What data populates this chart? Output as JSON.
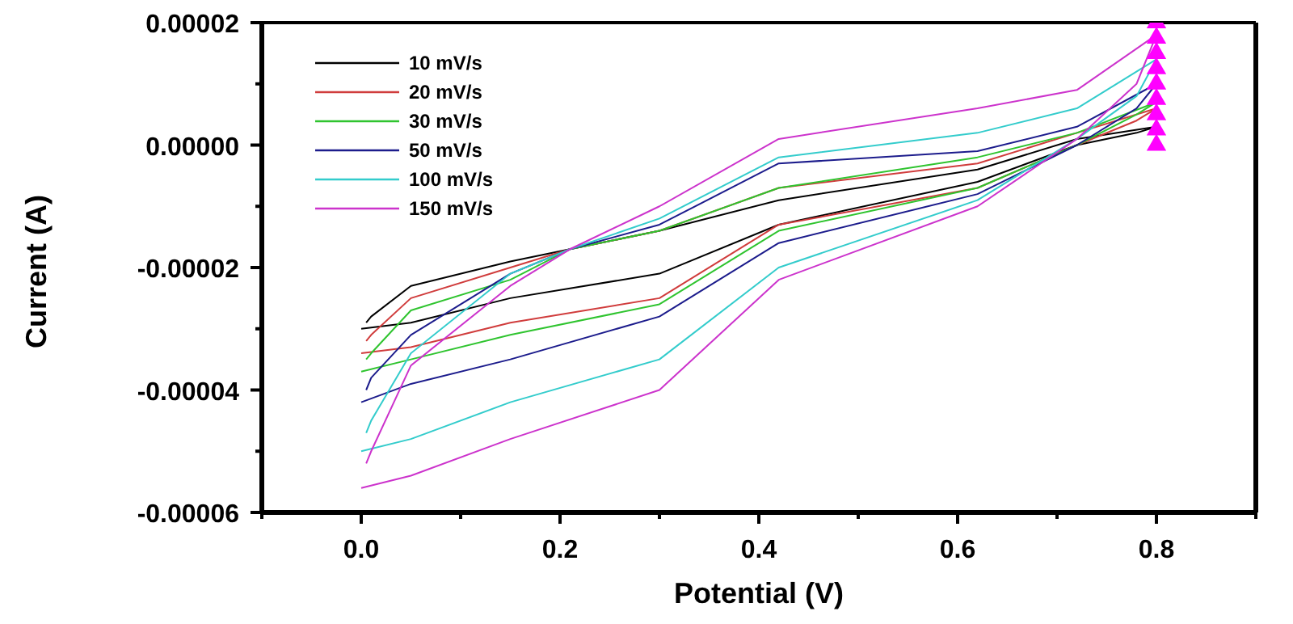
{
  "chart_data": {
    "type": "line",
    "xlabel": "Potential (V)",
    "ylabel": "Current (A)",
    "series": [
      {
        "name": "10 mV/s",
        "color": "#000000",
        "x": [
          0,
          0.05,
          0.15,
          0.3,
          0.42,
          0.62,
          0.72,
          0.78,
          0.8
        ],
        "values": [
          -3e-05,
          -2.9e-05,
          -2.5e-05,
          -2.1e-05,
          -1.3e-05,
          -6e-06,
          0.0,
          2e-06,
          3e-06
        ]
      },
      {
        "color": "#000000",
        "x": [
          0.005,
          0.01,
          0.05,
          0.15,
          0.21,
          0.3,
          0.42,
          0.62,
          0.72,
          0.8
        ],
        "values": [
          -2.9e-05,
          -2.8e-05,
          -2.3e-05,
          -1.9e-05,
          -1.7e-05,
          -1.4e-05,
          -9e-06,
          -4e-06,
          1e-06,
          3e-06
        ]
      },
      {
        "name": "20 mV/s",
        "color": "#d03c3c",
        "x": [
          0,
          0.05,
          0.15,
          0.3,
          0.42,
          0.62,
          0.72,
          0.78,
          0.8
        ],
        "values": [
          -3.4e-05,
          -3.3e-05,
          -2.9e-05,
          -2.5e-05,
          -1.3e-05,
          -7e-06,
          0.0,
          4e-06,
          6e-06
        ]
      },
      {
        "color": "#d03c3c",
        "x": [
          0.005,
          0.01,
          0.05,
          0.15,
          0.21,
          0.3,
          0.42,
          0.62,
          0.72,
          0.8
        ],
        "values": [
          -3.2e-05,
          -3.1e-05,
          -2.5e-05,
          -2e-05,
          -1.7e-05,
          -1.4e-05,
          -7e-06,
          -3e-06,
          2e-06,
          6e-06
        ]
      },
      {
        "name": "30 mV/s",
        "color": "#2fc42f",
        "x": [
          0,
          0.05,
          0.15,
          0.3,
          0.42,
          0.62,
          0.72,
          0.78,
          0.8
        ],
        "values": [
          -3.7e-05,
          -3.5e-05,
          -3.1e-05,
          -2.6e-05,
          -1.4e-05,
          -7e-06,
          0.0,
          5e-06,
          7e-06
        ]
      },
      {
        "color": "#2fc42f",
        "x": [
          0.005,
          0.01,
          0.05,
          0.15,
          0.21,
          0.3,
          0.42,
          0.62,
          0.72,
          0.8
        ],
        "values": [
          -3.5e-05,
          -3.4e-05,
          -2.7e-05,
          -2.2e-05,
          -1.7e-05,
          -1.4e-05,
          -7e-06,
          -2e-06,
          2e-06,
          7e-06
        ]
      },
      {
        "name": "50 mV/s",
        "color": "#1c1c8c",
        "x": [
          0,
          0.05,
          0.15,
          0.3,
          0.42,
          0.62,
          0.72,
          0.78,
          0.8
        ],
        "values": [
          -4.2e-05,
          -3.9e-05,
          -3.5e-05,
          -2.8e-05,
          -1.6e-05,
          -8e-06,
          0.0,
          6e-06,
          1e-05
        ]
      },
      {
        "color": "#1c1c8c",
        "x": [
          0.005,
          0.01,
          0.05,
          0.15,
          0.21,
          0.3,
          0.42,
          0.62,
          0.72,
          0.8
        ],
        "values": [
          -4e-05,
          -3.8e-05,
          -3.1e-05,
          -2.1e-05,
          -1.7e-05,
          -1.3e-05,
          -3e-06,
          -1e-06,
          3e-06,
          1e-05
        ]
      },
      {
        "name": "100 mV/s",
        "color": "#33cccc",
        "x": [
          0,
          0.05,
          0.15,
          0.3,
          0.42,
          0.62,
          0.72,
          0.78,
          0.8
        ],
        "values": [
          -5e-05,
          -4.8e-05,
          -4.2e-05,
          -3.5e-05,
          -2e-05,
          -9e-06,
          1e-06,
          8e-06,
          1.4e-05
        ]
      },
      {
        "color": "#33cccc",
        "x": [
          0.005,
          0.01,
          0.05,
          0.15,
          0.21,
          0.3,
          0.42,
          0.62,
          0.72,
          0.8
        ],
        "values": [
          -4.7e-05,
          -4.5e-05,
          -3.4e-05,
          -2.1e-05,
          -1.7e-05,
          -1.2e-05,
          -2e-06,
          2e-06,
          6e-06,
          1.4e-05
        ]
      },
      {
        "name": "150 mV/s",
        "color": "#cc33cc",
        "x": [
          0,
          0.05,
          0.15,
          0.3,
          0.42,
          0.62,
          0.72,
          0.78,
          0.8
        ],
        "values": [
          -5.6e-05,
          -5.4e-05,
          -4.8e-05,
          -4e-05,
          -2.2e-05,
          -1e-05,
          1e-06,
          1e-05,
          1.8e-05
        ]
      },
      {
        "color": "#cc33cc",
        "x": [
          0.005,
          0.01,
          0.05,
          0.15,
          0.21,
          0.3,
          0.42,
          0.62,
          0.72,
          0.8
        ],
        "values": [
          -5.2e-05,
          -5e-05,
          -3.6e-05,
          -2.3e-05,
          -1.7e-05,
          -1e-05,
          1e-06,
          6e-06,
          9e-06,
          1.8e-05
        ]
      },
      {
        "type": "scatter",
        "marker": "triangle",
        "color": "#ff00ff",
        "x": [
          0.8,
          0.8,
          0.8,
          0.8,
          0.8,
          0.8,
          0.8,
          0.8,
          0.8
        ],
        "values": [
          0,
          2.5e-06,
          5e-06,
          7.5e-06,
          1e-05,
          1.25e-05,
          1.5e-05,
          1.75e-05,
          2e-05
        ]
      }
    ],
    "xlim": [
      -0.1,
      0.9
    ],
    "xticks": [
      {
        "value": -0.1,
        "label": null
      },
      {
        "value": 0,
        "label": "0.0"
      },
      {
        "value": 0.1,
        "label": null
      },
      {
        "value": 0.2,
        "label": "0.2"
      },
      {
        "value": 0.3,
        "label": null
      },
      {
        "value": 0.4,
        "label": "0.4"
      },
      {
        "value": 0.5,
        "label": null
      },
      {
        "value": 0.6,
        "label": "0.6"
      },
      {
        "value": 0.7,
        "label": null
      },
      {
        "value": 0.8,
        "label": "0.8"
      },
      {
        "value": 0.9,
        "label": null
      }
    ],
    "ylim": [
      -6e-05,
      2e-05
    ],
    "yticks": [
      {
        "value": -6e-05,
        "label": "-0.00006"
      },
      {
        "value": -5e-05,
        "label": null
      },
      {
        "value": -4e-05,
        "label": "-0.00004"
      },
      {
        "value": -3e-05,
        "label": null
      },
      {
        "value": -2e-05,
        "label": "-0.00002"
      },
      {
        "value": -1e-05,
        "label": null
      },
      {
        "value": 0,
        "label": "0.00000"
      },
      {
        "value": 1e-05,
        "label": null
      },
      {
        "value": 2e-05,
        "label": "0.00002"
      }
    ],
    "legend": "top left",
    "marker": "none",
    "line_style": "solid"
  }
}
